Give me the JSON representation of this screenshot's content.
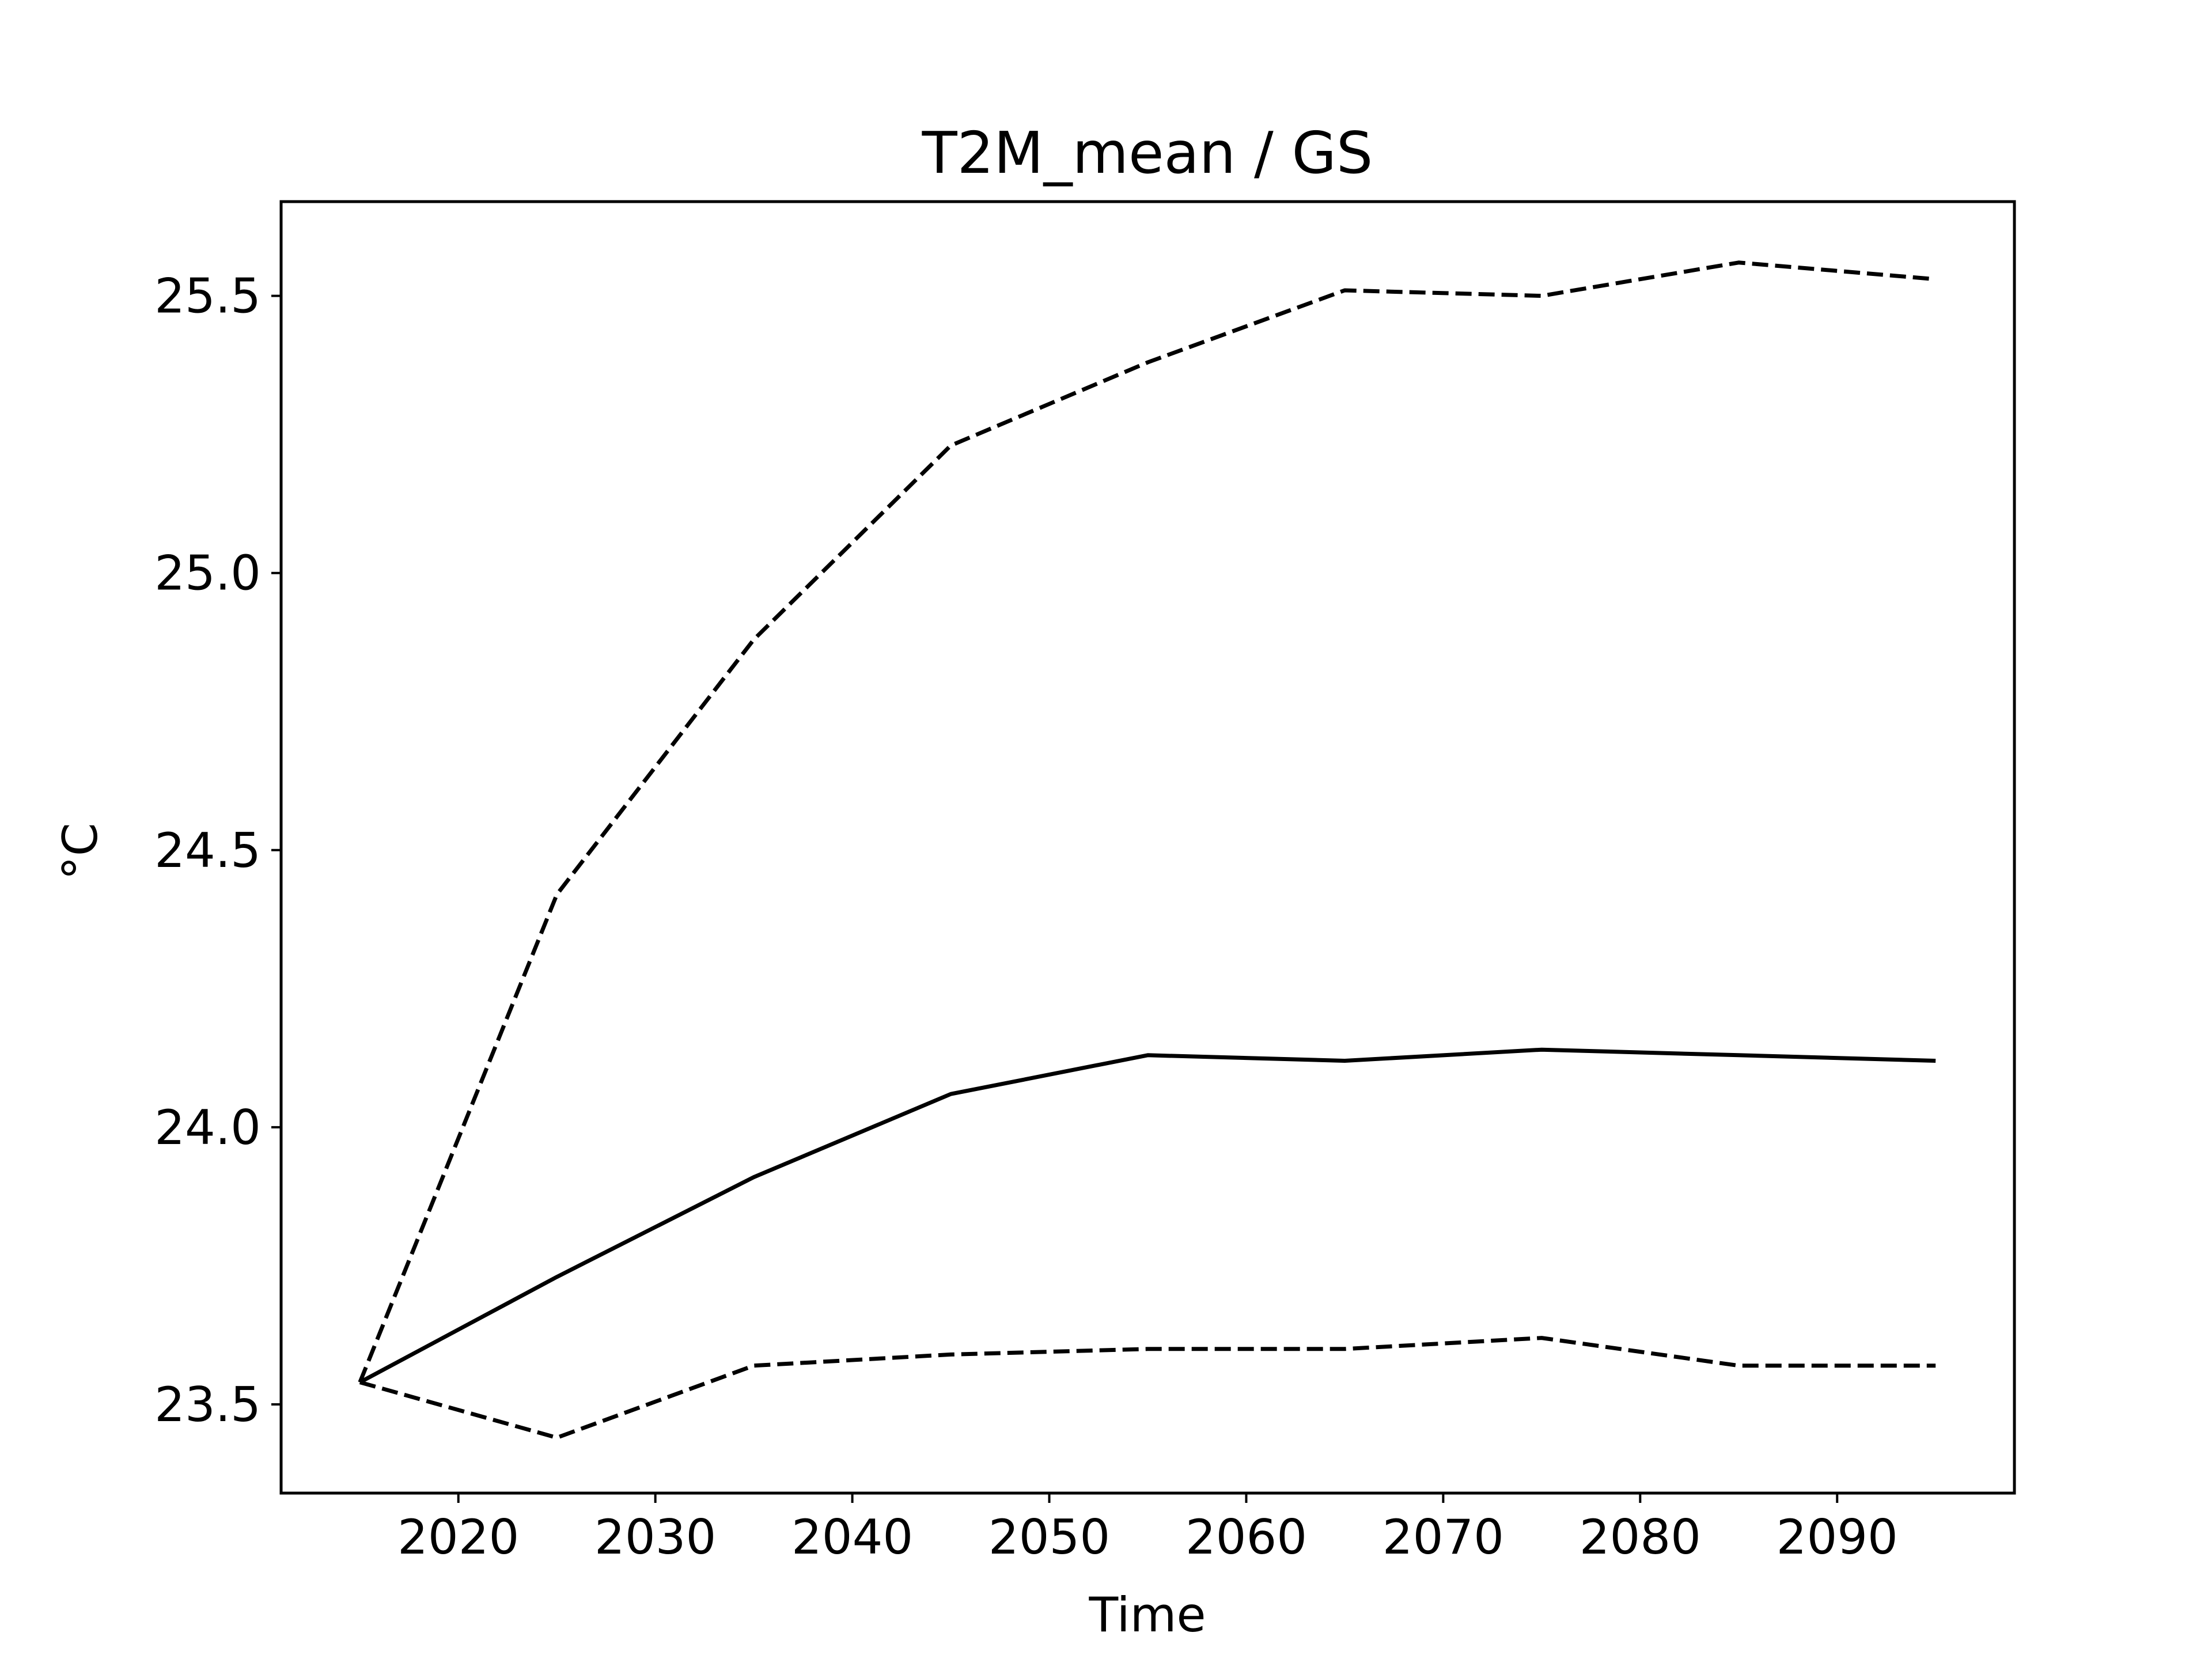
{
  "chart_data": {
    "type": "line",
    "title": "T2M_mean / GS",
    "xlabel": "Time",
    "ylabel": "°C",
    "xlim": [
      2011,
      2099
    ],
    "ylim": [
      23.34,
      25.67
    ],
    "xticks": [
      2020,
      2030,
      2040,
      2050,
      2060,
      2070,
      2080,
      2090
    ],
    "xtick_labels": [
      "2020",
      "2030",
      "2040",
      "2050",
      "2060",
      "2070",
      "2080",
      "2090"
    ],
    "yticks": [
      23.5,
      24.0,
      24.5,
      25.0,
      25.5
    ],
    "ytick_labels": [
      "23.5",
      "24.0",
      "24.5",
      "25.0",
      "25.5"
    ],
    "grid": false,
    "x": [
      2015,
      2025,
      2035,
      2045,
      2055,
      2065,
      2075,
      2085,
      2095
    ],
    "series": [
      {
        "style": "solid",
        "color": "#000000",
        "values": [
          23.54,
          23.73,
          23.91,
          24.06,
          24.13,
          24.12,
          24.14,
          24.13,
          24.12
        ]
      },
      {
        "style": "dashed",
        "color": "#000000",
        "values": [
          23.54,
          24.42,
          24.88,
          25.23,
          25.38,
          25.51,
          25.5,
          25.56,
          25.53
        ]
      },
      {
        "style": "dashed",
        "color": "#000000",
        "values": [
          23.54,
          23.44,
          23.57,
          23.59,
          23.6,
          23.6,
          23.62,
          23.57,
          23.57
        ]
      }
    ]
  }
}
